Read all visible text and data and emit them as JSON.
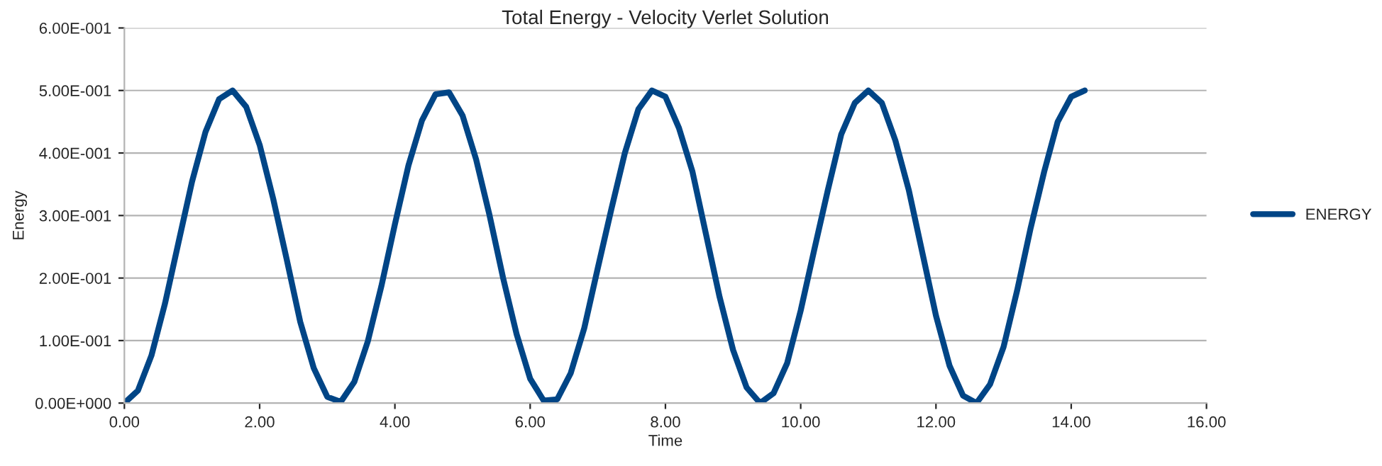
{
  "chart_data": {
    "type": "line",
    "title": "Total Energy - Velocity Verlet Solution",
    "xlabel": "Time",
    "ylabel": "Energy",
    "series": [
      {
        "name": "ENERGY",
        "color": "#004586",
        "x": [
          0,
          0.2,
          0.4,
          0.6,
          0.8,
          1.0,
          1.2,
          1.4,
          1.6,
          1.8,
          2.0,
          2.2,
          2.4,
          2.6,
          2.8,
          3.0,
          3.2,
          3.4,
          3.6,
          3.8,
          4.0,
          4.2,
          4.4,
          4.6,
          4.8,
          5.0,
          5.2,
          5.4,
          5.6,
          5.8,
          6.0,
          6.2,
          6.4,
          6.6,
          6.8,
          7.0,
          7.2,
          7.4,
          7.6,
          7.8,
          8.0,
          8.2,
          8.4,
          8.6,
          8.8,
          9.0,
          9.2,
          9.4,
          9.6,
          9.8,
          10.0,
          10.2,
          10.4,
          10.6,
          10.8,
          11.0,
          11.2,
          11.4,
          11.6,
          11.8,
          12.0,
          12.2,
          12.4,
          12.6,
          12.8,
          13.0,
          13.2,
          13.4,
          13.6,
          13.8,
          14.0,
          14.2
        ],
        "values": [
          0,
          0.02,
          0.076,
          0.159,
          0.257,
          0.354,
          0.434,
          0.486,
          0.5,
          0.474,
          0.413,
          0.327,
          0.23,
          0.13,
          0.056,
          0.01,
          0.002,
          0.034,
          0.099,
          0.187,
          0.286,
          0.38,
          0.452,
          0.494,
          0.497,
          0.46,
          0.39,
          0.3,
          0.2,
          0.11,
          0.039,
          0.004,
          0.006,
          0.048,
          0.12,
          0.216,
          0.31,
          0.4,
          0.47,
          0.5,
          0.49,
          0.44,
          0.37,
          0.27,
          0.17,
          0.085,
          0.025,
          0.0,
          0.016,
          0.064,
          0.148,
          0.245,
          0.34,
          0.43,
          0.48,
          0.5,
          0.48,
          0.42,
          0.34,
          0.24,
          0.14,
          0.06,
          0.012,
          0.0,
          0.03,
          0.09,
          0.18,
          0.28,
          0.37,
          0.45,
          0.49,
          0.5
        ]
      }
    ],
    "xlim": [
      0,
      16
    ],
    "xticks": [
      {
        "value": 0,
        "label": "0.00"
      },
      {
        "value": 2,
        "label": "2.00"
      },
      {
        "value": 4,
        "label": "4.00"
      },
      {
        "value": 6,
        "label": "6.00"
      },
      {
        "value": 8,
        "label": "8.00"
      },
      {
        "value": 10,
        "label": "10.00"
      },
      {
        "value": 12,
        "label": "12.00"
      },
      {
        "value": 14,
        "label": "14.00"
      },
      {
        "value": 16,
        "label": "16.00"
      }
    ],
    "ylim": [
      0,
      0.6
    ],
    "yticks": [
      {
        "value": 0,
        "label": "0.00E+000"
      },
      {
        "value": 0.1,
        "label": "1.00E-001"
      },
      {
        "value": 0.2,
        "label": "2.00E-001"
      },
      {
        "value": 0.3,
        "label": "3.00E-001"
      },
      {
        "value": 0.4,
        "label": "4.00E-001"
      },
      {
        "value": 0.5,
        "label": "5.00E-001"
      },
      {
        "value": 0.6,
        "label": "6.00E-001"
      }
    ],
    "grid": "y",
    "legend": "right",
    "marker": "none",
    "line_style": "solid"
  }
}
